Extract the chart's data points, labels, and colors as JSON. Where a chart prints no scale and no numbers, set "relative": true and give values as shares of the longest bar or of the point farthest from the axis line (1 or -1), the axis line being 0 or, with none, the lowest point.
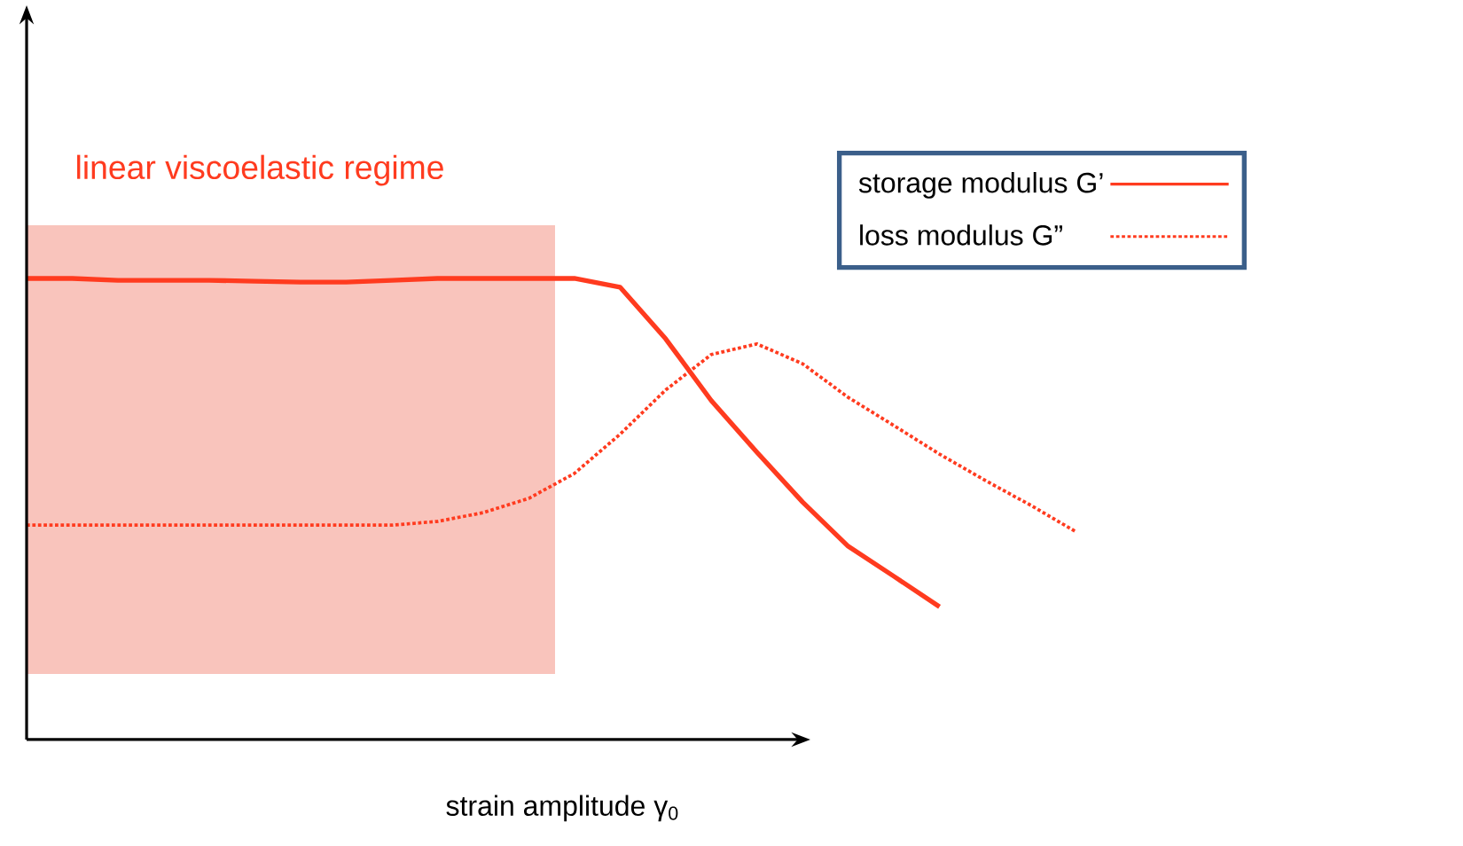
{
  "chart_data": {
    "type": "line",
    "relative": true,
    "xlabel": "strain amplitude γ$_{0}$",
    "legend": "top right",
    "categories": [
      null,
      null,
      null,
      null,
      null,
      null,
      null,
      null,
      null,
      null,
      null,
      null,
      null,
      null,
      null,
      null,
      null,
      null,
      null,
      null,
      null,
      null,
      null,
      null
    ],
    "series": [
      {
        "name": "storage modulus G’",
        "color": "#ff3b1f",
        "line_style": "solid",
        "values": [
          1.0,
          1.0,
          0.996,
          0.996,
          0.996,
          0.994,
          0.992,
          0.992,
          0.996,
          1.0,
          1.0,
          1.0,
          1.0,
          0.981,
          0.869,
          0.735,
          0.623,
          0.515,
          0.419,
          0.354,
          0.288,
          null,
          null,
          null
        ]
      },
      {
        "name": "loss modulus G”",
        "color": "#ff3b1f",
        "line_style": "dotted",
        "values": [
          0.465,
          0.465,
          0.465,
          0.465,
          0.465,
          0.465,
          0.465,
          0.465,
          0.465,
          0.473,
          0.492,
          0.523,
          0.577,
          0.662,
          0.758,
          0.835,
          0.858,
          0.815,
          0.742,
          0.681,
          0.619,
          0.562,
          0.508,
          0.45
        ]
      }
    ],
    "annotations": [
      "linear viscoelastic regime"
    ]
  }
}
